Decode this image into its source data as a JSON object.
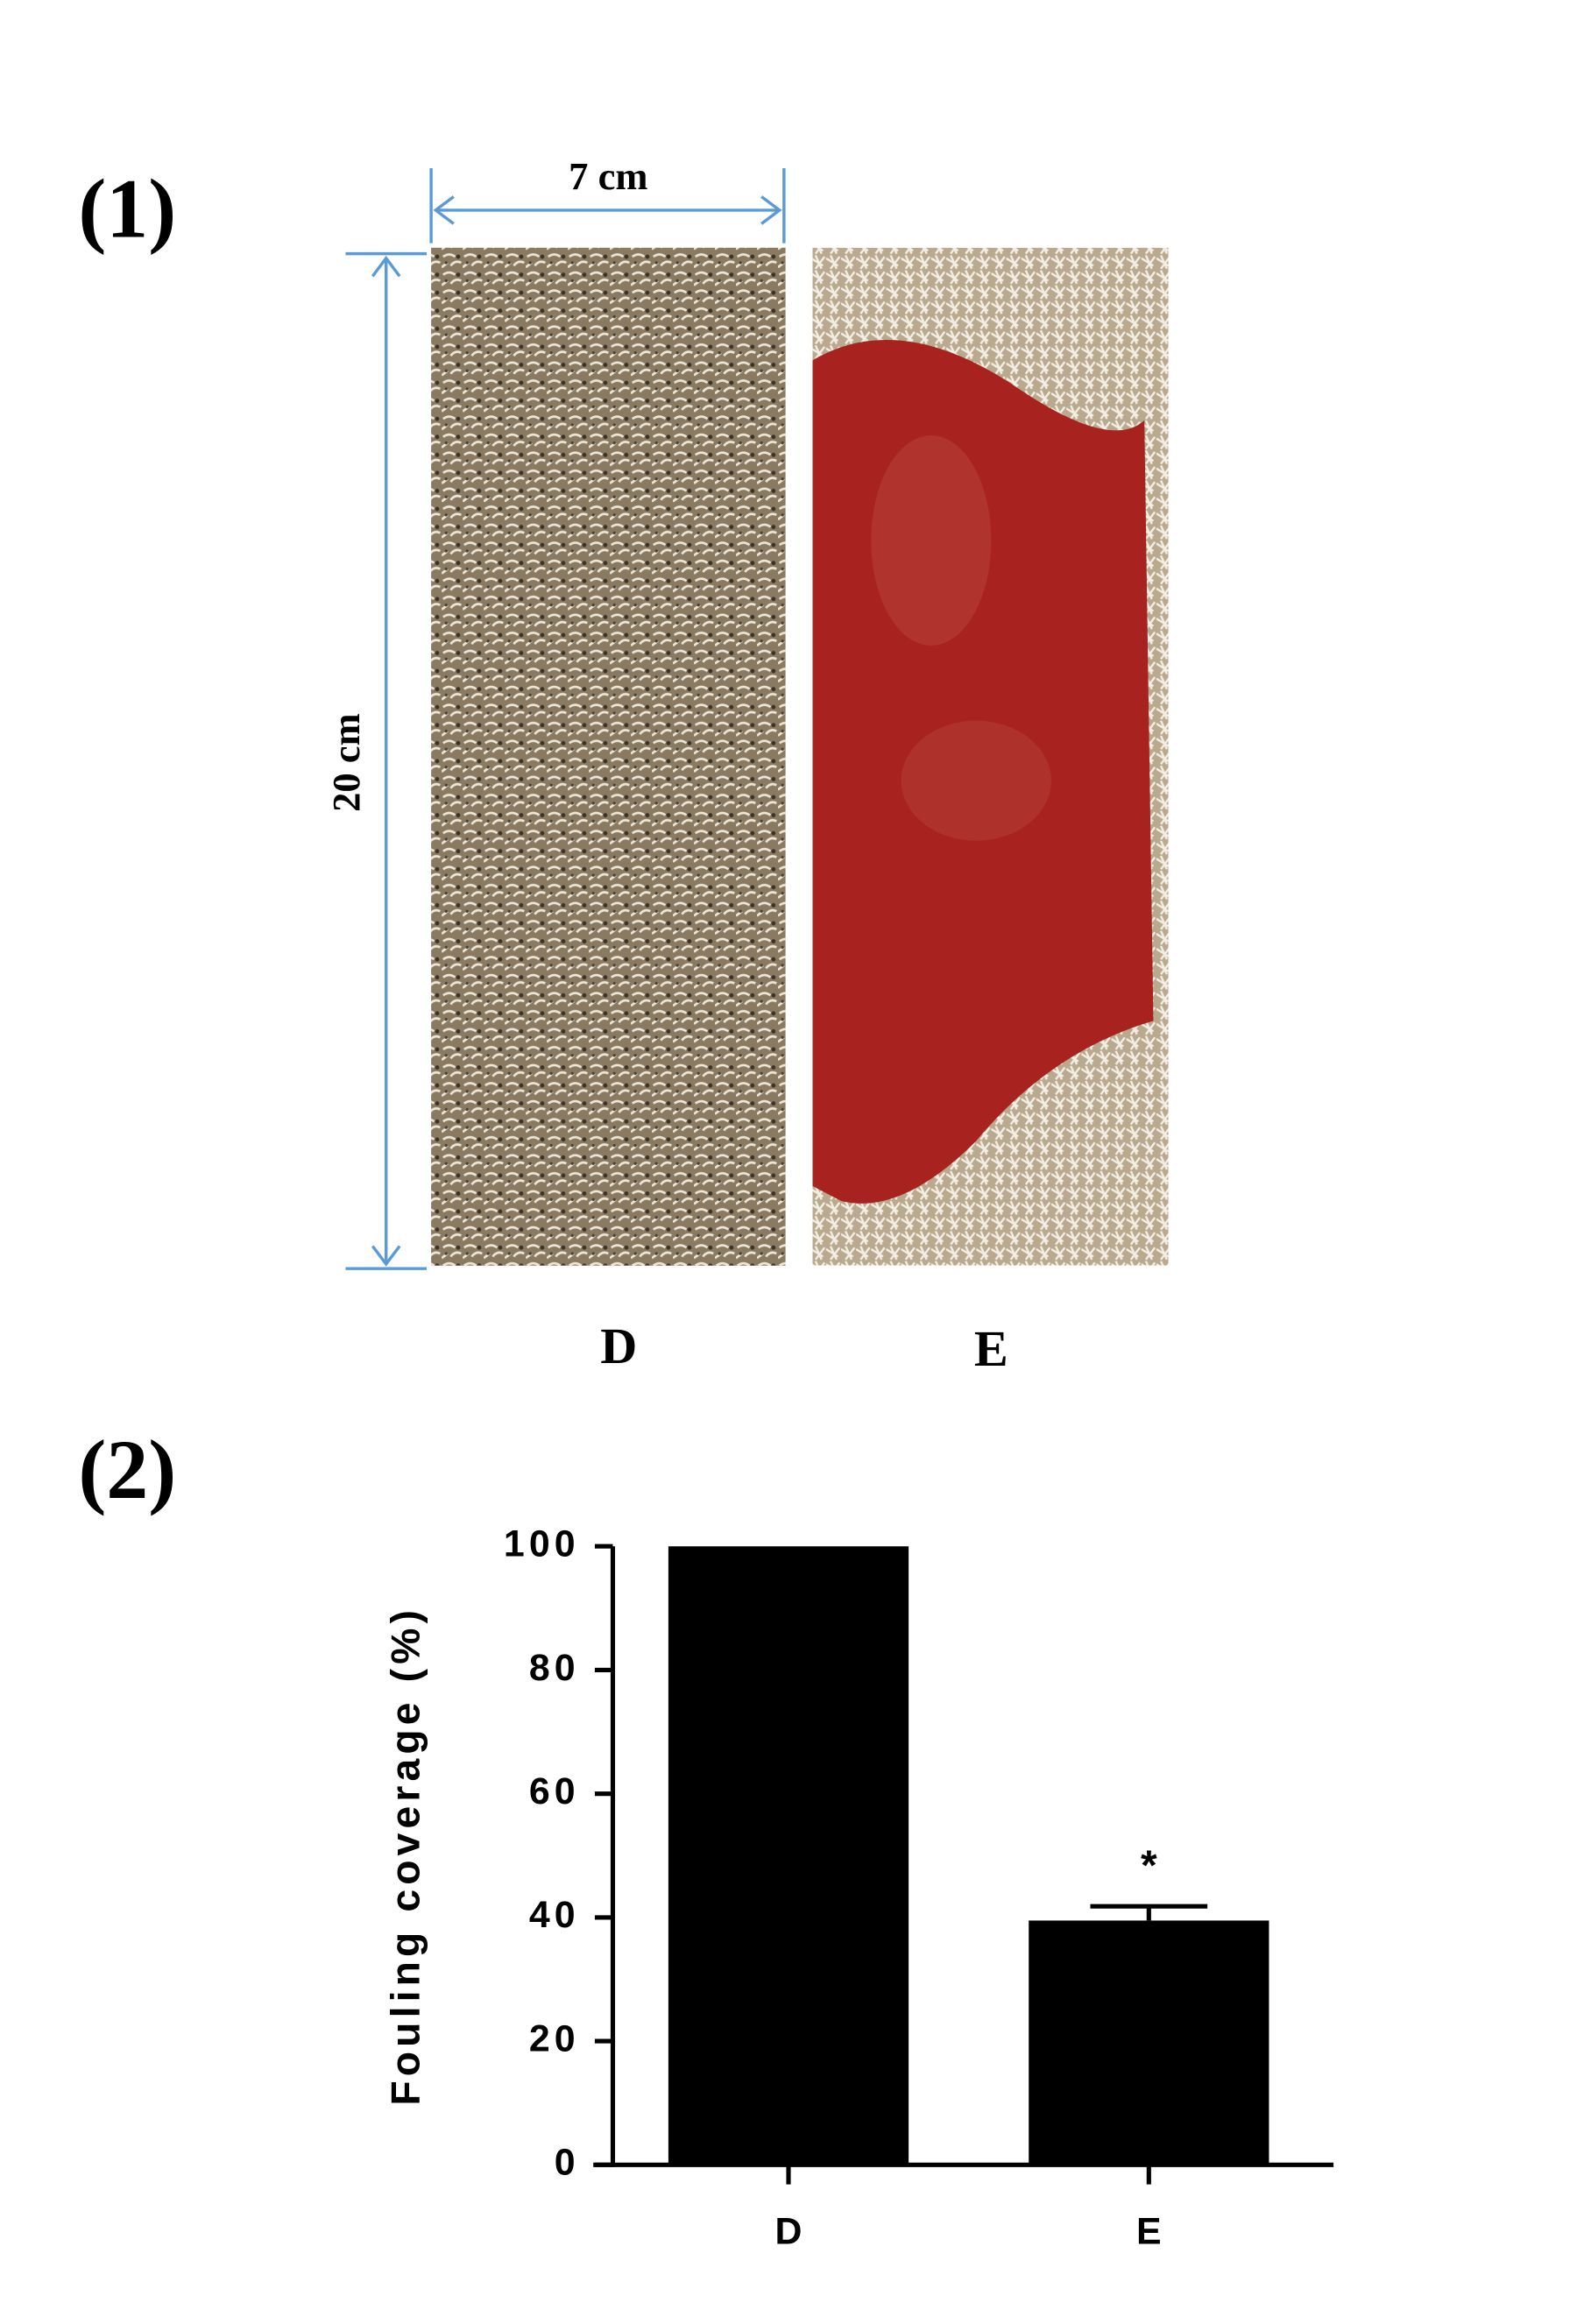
{
  "photo_panel": {
    "label": "(1)",
    "width_label": "7 cm",
    "height_label": "20 cm",
    "samples": [
      "D",
      "E"
    ]
  },
  "chart_panel_label": "(2)",
  "chart_data": {
    "type": "bar",
    "y_label": "Fouling coverage (%)",
    "categories": [
      "D",
      "E"
    ],
    "series": [
      {
        "color": "#000000",
        "values": [
          100,
          39.5
        ],
        "errors": [
          null,
          2.3
        ]
      }
    ],
    "annotation": "*",
    "ylim": [
      0,
      100
    ],
    "yticks": [
      0,
      20,
      40,
      60,
      80,
      100
    ]
  }
}
